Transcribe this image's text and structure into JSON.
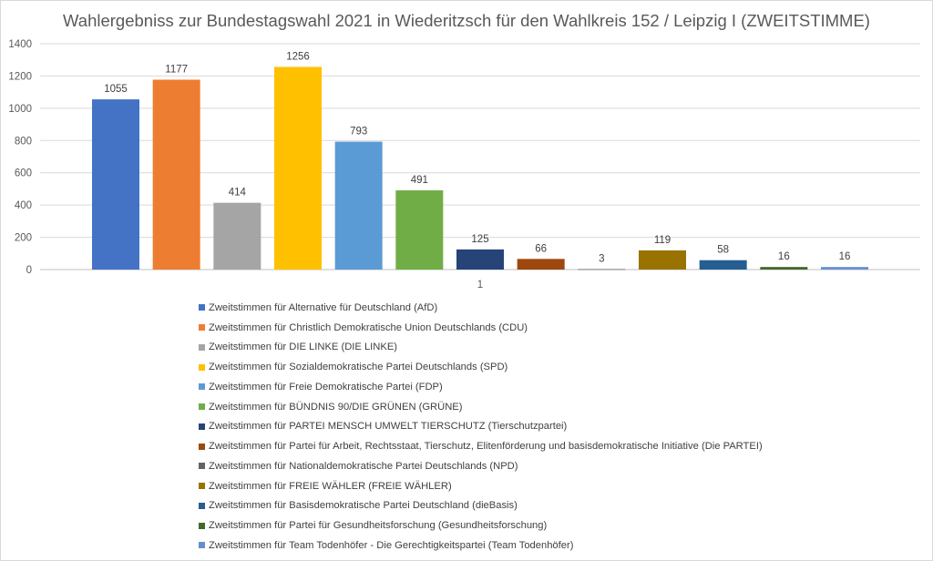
{
  "chart_data": {
    "type": "bar",
    "title": "Wahlergebniss zur Bundestagswahl 2021 in Wiederitzsch für den Wahlkreis 152 / Leipzig I (ZWEITSTIMME)",
    "categories": [
      "1"
    ],
    "ylim": [
      0,
      1400
    ],
    "yticks": [
      0,
      200,
      400,
      600,
      800,
      1000,
      1200,
      1400
    ],
    "grid": true,
    "legend_position": "bottom",
    "series": [
      {
        "name": "Zweitstimmen für Alternative für Deutschland (AfD)",
        "values": [
          1055
        ],
        "color": "#4472C4"
      },
      {
        "name": "Zweitstimmen für Christlich Demokratische Union Deutschlands (CDU)",
        "values": [
          1177
        ],
        "color": "#ED7D31"
      },
      {
        "name": "Zweitstimmen für DIE LINKE (DIE LINKE)",
        "values": [
          414
        ],
        "color": "#A5A5A5"
      },
      {
        "name": "Zweitstimmen für Sozialdemokratische Partei Deutschlands (SPD)",
        "values": [
          1256
        ],
        "color": "#FFC000"
      },
      {
        "name": "Zweitstimmen für Freie Demokratische Partei (FDP)",
        "values": [
          793
        ],
        "color": "#5B9BD5"
      },
      {
        "name": "Zweitstimmen für BÜNDNIS 90/DIE GRÜNEN (GRÜNE)",
        "values": [
          491
        ],
        "color": "#70AD47"
      },
      {
        "name": "Zweitstimmen für PARTEI MENSCH UMWELT TIERSCHUTZ (Tierschutzpartei)",
        "values": [
          125
        ],
        "color": "#264478"
      },
      {
        "name": "Zweitstimmen für Partei für Arbeit, Rechtsstaat, Tierschutz, Elitenförderung und basisdemokratische Initiative (Die PARTEI)",
        "values": [
          66
        ],
        "color": "#9E480E"
      },
      {
        "name": "Zweitstimmen für Nationaldemokratische Partei Deutschlands (NPD)",
        "values": [
          3
        ],
        "color": "#636363"
      },
      {
        "name": "Zweitstimmen für FREIE WÄHLER (FREIE WÄHLER)",
        "values": [
          119
        ],
        "color": "#997300"
      },
      {
        "name": "Zweitstimmen für Basisdemokratische Partei Deutschland (dieBasis)",
        "values": [
          58
        ],
        "color": "#255E91"
      },
      {
        "name": "Zweitstimmen für Partei für Gesundheitsforschung (Gesundheitsforschung)",
        "values": [
          16
        ],
        "color": "#43682B"
      },
      {
        "name": "Zweitstimmen für Team Todenhöfer - Die Gerechtigkeitspartei (Team Todenhöfer)",
        "values": [
          16
        ],
        "color": "#698ED0"
      }
    ]
  }
}
